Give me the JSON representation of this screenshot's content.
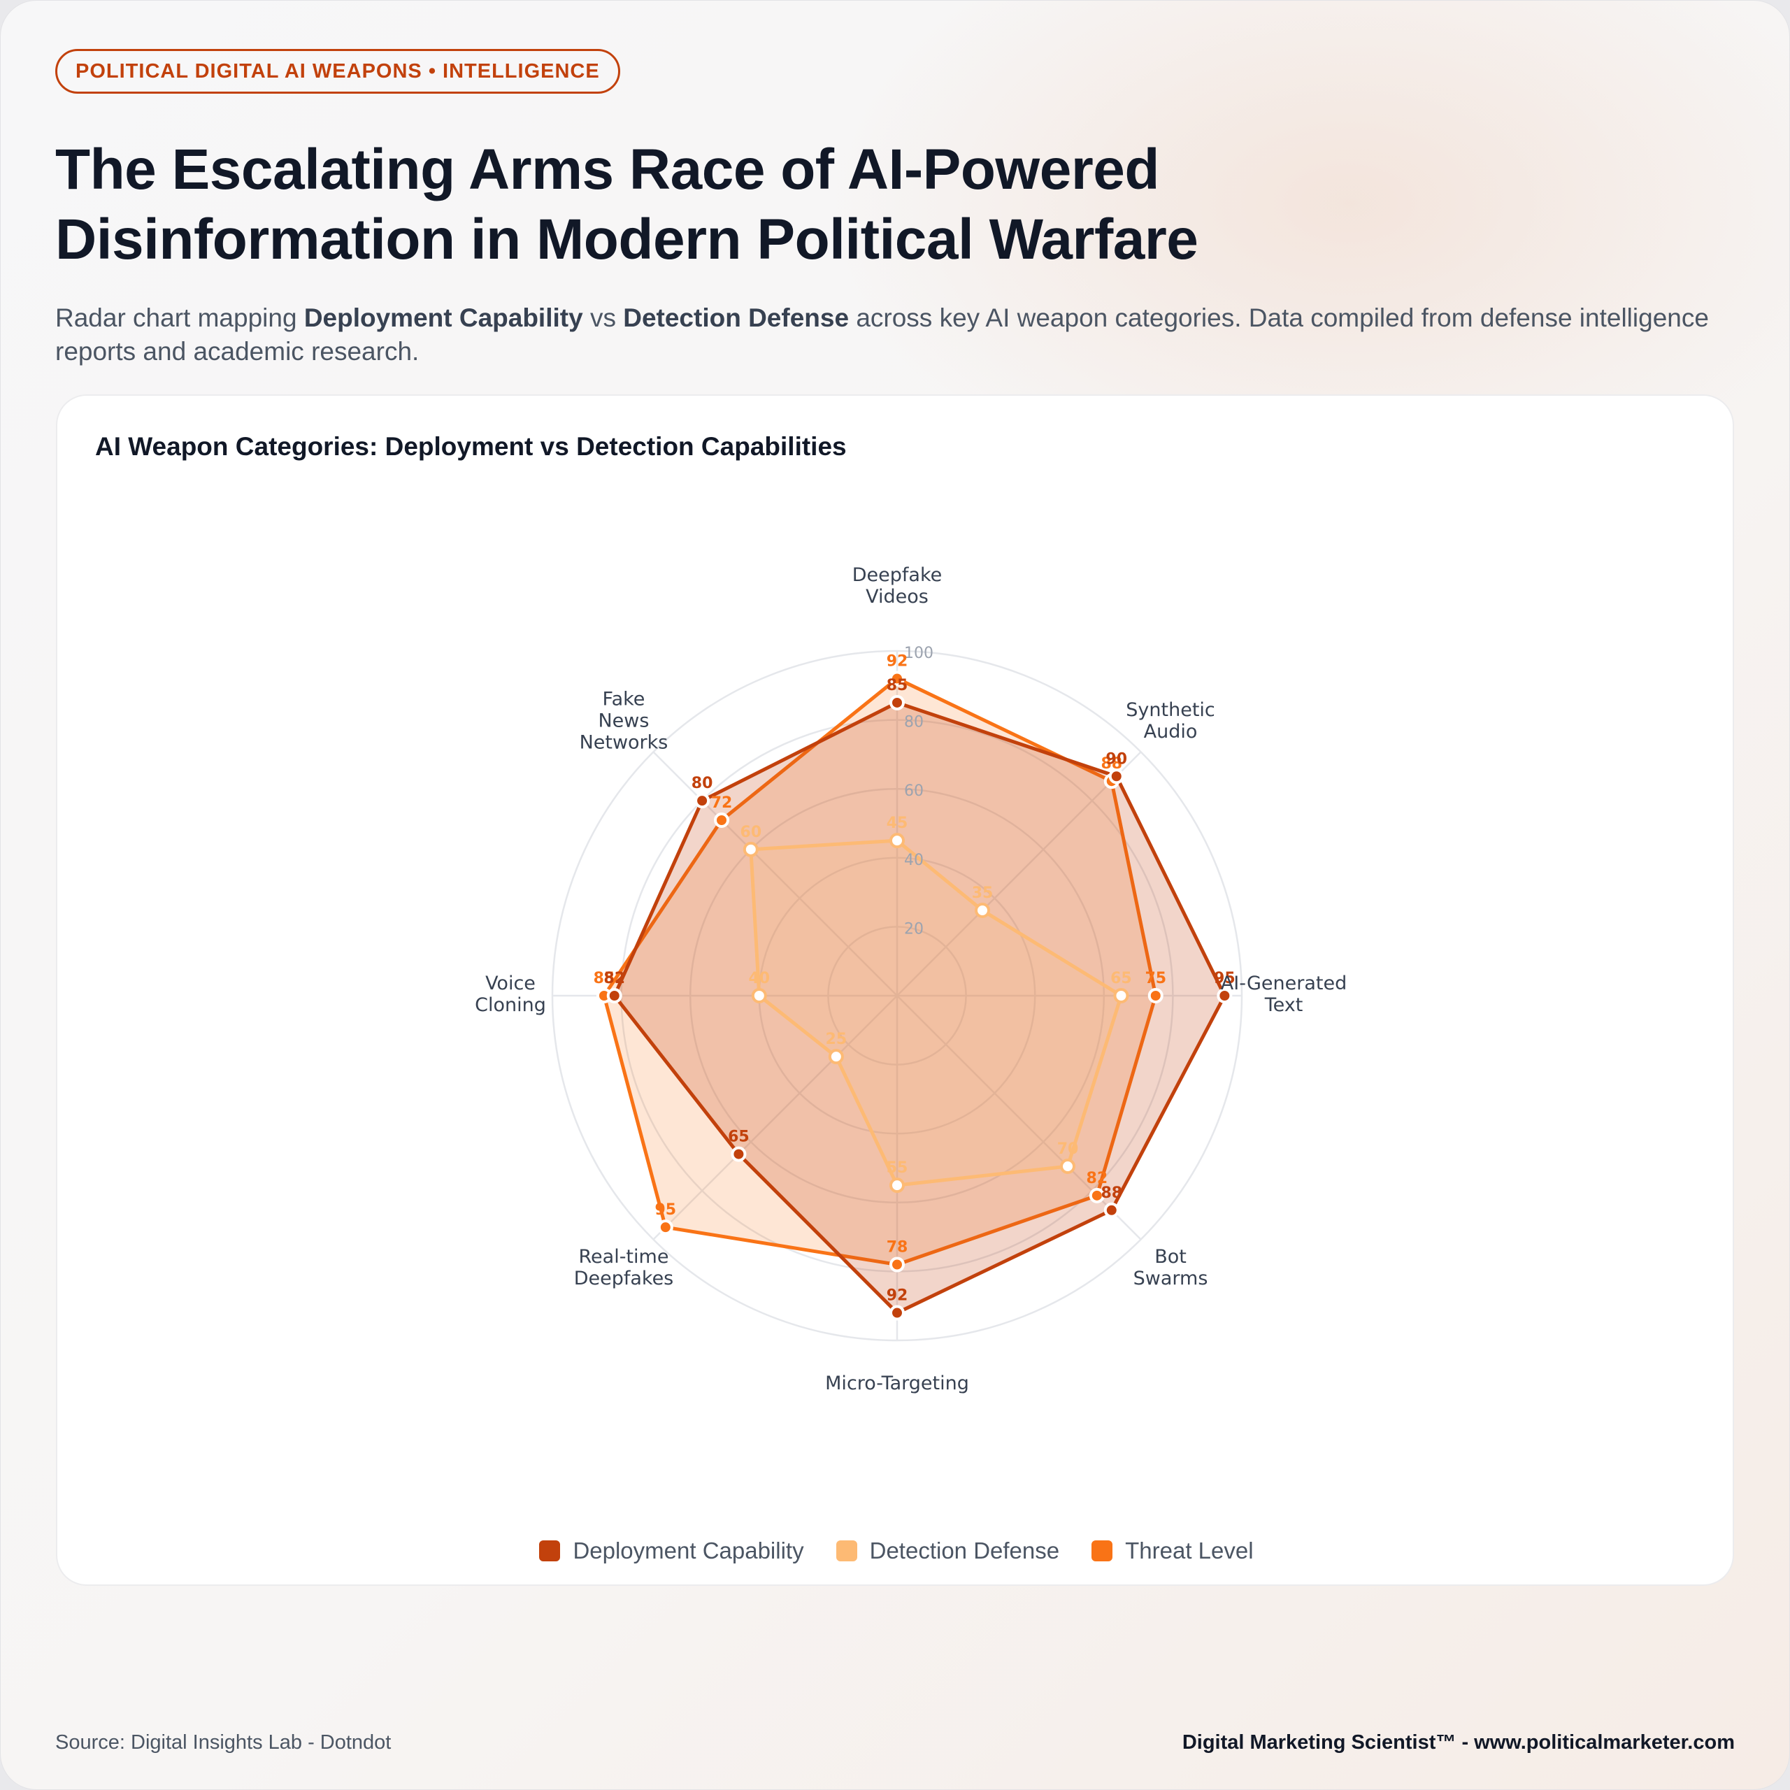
{
  "badge": "POLITICAL DIGITAL AI WEAPONS • INTELLIGENCE",
  "title_line1": "The Escalating Arms Race of AI-Powered",
  "title_line2": "Disinformation in Modern Political Warfare",
  "subtitle": {
    "part1": "Radar chart mapping ",
    "bold1": "Deployment Capability",
    "part2": " vs ",
    "bold2": "Detection Defense",
    "part3": " across key AI weapon categories. Data compiled from defense intelligence reports and academic research."
  },
  "chart_data": {
    "type": "radar",
    "title": "AI Weapon Categories: Deployment vs Detection Capabilities",
    "categories": [
      [
        "Deepfake",
        "Videos"
      ],
      [
        "Synthetic",
        "Audio"
      ],
      [
        "AI-Generated",
        "Text"
      ],
      [
        "Bot",
        "Swarms"
      ],
      [
        "Micro-Targeting"
      ],
      [
        "Real-time",
        "Deepfakes"
      ],
      [
        "Voice",
        "Cloning"
      ],
      [
        "Fake",
        "News",
        "Networks"
      ]
    ],
    "rlim": [
      0,
      100
    ],
    "ticks": [
      20,
      40,
      60,
      80,
      100
    ],
    "legend_position": "bottom",
    "series": [
      {
        "name": "Deployment Capability",
        "color": "#c2410c",
        "values": [
          85,
          90,
          95,
          88,
          92,
          65,
          82,
          80
        ]
      },
      {
        "name": "Detection Defense",
        "color": "#fdba74",
        "values": [
          45,
          35,
          65,
          70,
          55,
          25,
          40,
          60
        ]
      },
      {
        "name": "Threat Level",
        "color": "#f97316",
        "values": [
          92,
          88,
          75,
          82,
          78,
          95,
          85,
          72
        ]
      }
    ]
  },
  "footer": {
    "source": "Source: Digital Insights Lab - Dotndot",
    "brand": "Digital Marketing Scientist™ - www.politicalmarketer.com"
  }
}
